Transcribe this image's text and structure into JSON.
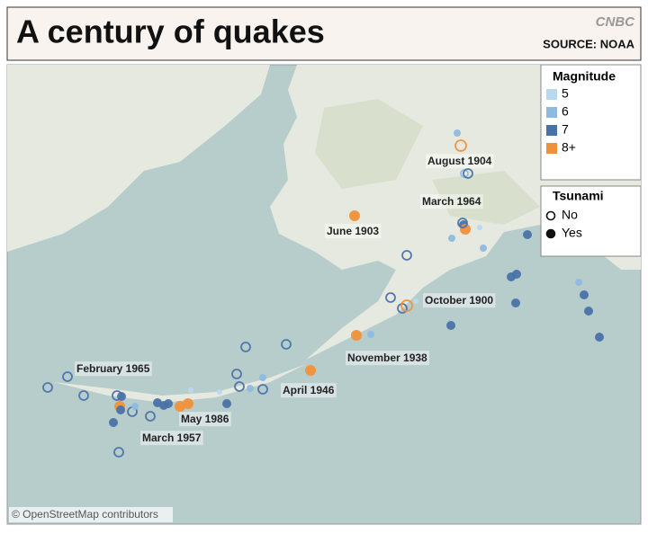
{
  "header": {
    "title": "A century of quakes",
    "logo": "CNBC",
    "source": "SOURCE: NOAA"
  },
  "legend": {
    "magnitude": {
      "title": "Magnitude",
      "items": [
        {
          "label": "5",
          "color": "#b9d9ee"
        },
        {
          "label": "6",
          "color": "#8fbadf"
        },
        {
          "label": "7",
          "color": "#4a72a8"
        },
        {
          "label": "8+",
          "color": "#f0913a"
        }
      ]
    },
    "tsunami": {
      "title": "Tsunami",
      "items": [
        "No",
        "Yes"
      ]
    }
  },
  "annotations": [
    "August 1904",
    "March 1964",
    "June 1903",
    "October 1900",
    "November 1938",
    "April 1946",
    "February 1965",
    "May 1986",
    "March 1957"
  ],
  "attribution": "© OpenStreetMap contributors"
}
